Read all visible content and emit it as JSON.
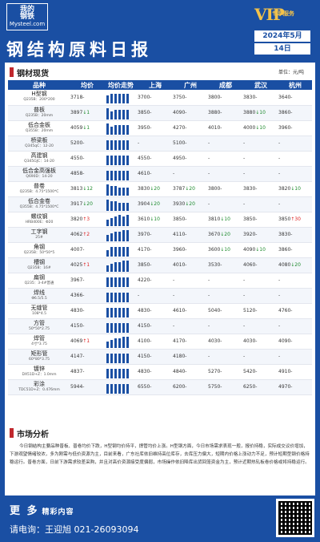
{
  "header": {
    "logo_line1": "我的",
    "logo_line2": "钢铁",
    "logo_line3": "Mysteel.com",
    "vip": "VIP",
    "vip_sub": "专享服务",
    "title": "钢结构原料日报",
    "month": "2024年5月",
    "day": "14日"
  },
  "section1": {
    "title": "钢材现货",
    "unit": "单位：元/吨"
  },
  "columns": [
    "品种",
    "均价",
    "均价走势",
    "上海",
    "广州",
    "成都",
    "武汉",
    "杭州"
  ],
  "rows": [
    {
      "name": "H型钢",
      "spec": "Q235B：200*200",
      "avg": "3718",
      "ch": "-",
      "dir": "",
      "spark": [
        10,
        12,
        12,
        12,
        12,
        12
      ],
      "sh": "3700",
      "sh_ch": "-",
      "gz": "3750",
      "gz_ch": "-",
      "cd": "3800",
      "cd_ch": "-",
      "wh": "3830",
      "wh_ch": "-",
      "hz": "3640",
      "hz_ch": "-"
    },
    {
      "name": "普板",
      "spec": "Q235B：20mm",
      "avg": "3897",
      "ch": "↓1",
      "dir": "dn",
      "spark": [
        14,
        10,
        12,
        12,
        12,
        12
      ],
      "sh": "3850",
      "sh_ch": "-",
      "gz": "4090",
      "gz_ch": "-",
      "cd": "3880",
      "cd_ch": "-",
      "wh": "3880",
      "wh_ch": "↓10",
      "hz": "3860",
      "hz_ch": "-"
    },
    {
      "name": "低合金板",
      "spec": "Q355B：20mm",
      "avg": "4059",
      "ch": "↓1",
      "dir": "dn",
      "spark": [
        14,
        10,
        12,
        12,
        12,
        12
      ],
      "sh": "3950",
      "sh_ch": "-",
      "gz": "4270",
      "gz_ch": "-",
      "cd": "4010",
      "cd_ch": "-",
      "wh": "4000",
      "wh_ch": "↓10",
      "hz": "3960",
      "hz_ch": "-"
    },
    {
      "name": "桥梁板",
      "spec": "Q345qC：12-20",
      "avg": "5200",
      "ch": "-",
      "dir": "",
      "spark": [
        12,
        12,
        12,
        12,
        12,
        12
      ],
      "sh": "-",
      "sh_ch": "",
      "gz": "5100",
      "gz_ch": "-",
      "cd": "-",
      "cd_ch": "",
      "wh": "-",
      "wh_ch": "",
      "hz": "-",
      "hz_ch": ""
    },
    {
      "name": "高建钢",
      "spec": "Q345GJC：14-20",
      "avg": "4550",
      "ch": "-",
      "dir": "",
      "spark": [
        12,
        12,
        12,
        12,
        12,
        12
      ],
      "sh": "4550",
      "sh_ch": "-",
      "gz": "4950",
      "gz_ch": "-",
      "cd": "-",
      "cd_ch": "",
      "wh": "-",
      "wh_ch": "",
      "hz": "-",
      "hz_ch": ""
    },
    {
      "name": "低合金高强板",
      "spec": "Q690D：14-20",
      "avg": "4858",
      "ch": "-",
      "dir": "",
      "spark": [
        12,
        12,
        12,
        12,
        12,
        12
      ],
      "sh": "4610",
      "sh_ch": "-",
      "gz": "-",
      "gz_ch": "",
      "cd": "-",
      "cd_ch": "",
      "wh": "-",
      "wh_ch": "",
      "hz": "-",
      "hz_ch": ""
    },
    {
      "name": "普卷",
      "spec": "Q235B：4.75*1500*C",
      "avg": "3813",
      "ch": "↓12",
      "dir": "dn",
      "spark": [
        14,
        12,
        12,
        10,
        10,
        10
      ],
      "sh": "3830",
      "sh_ch": "↓20",
      "gz": "3787",
      "gz_ch": "↓20",
      "cd": "3800",
      "cd_ch": "-",
      "wh": "3830",
      "wh_ch": "-",
      "hz": "3820",
      "hz_ch": "↓10"
    },
    {
      "name": "低合金卷",
      "spec": "Q355B：4.75*1500*C",
      "avg": "3917",
      "ch": "↓20",
      "dir": "dn",
      "spark": [
        14,
        12,
        12,
        10,
        10,
        10
      ],
      "sh": "3904",
      "sh_ch": "↓20",
      "gz": "3930",
      "gz_ch": "↓20",
      "cd": "-",
      "cd_ch": "",
      "wh": "-",
      "wh_ch": "",
      "hz": "-",
      "hz_ch": ""
    },
    {
      "name": "螺纹钢",
      "spec": "HRB400E：Φ20",
      "avg": "3820",
      "ch": "↑3",
      "dir": "up",
      "spark": [
        8,
        10,
        12,
        14,
        12,
        14
      ],
      "sh": "3610",
      "sh_ch": "↓10",
      "gz": "3850",
      "gz_ch": "-",
      "cd": "3810",
      "cd_ch": "↓10",
      "wh": "3850",
      "wh_ch": "-",
      "hz": "3850",
      "hz_ch": "↑30"
    },
    {
      "name": "工字钢",
      "spec": "25#",
      "avg": "4062",
      "ch": "↑2",
      "dir": "up",
      "spark": [
        8,
        10,
        12,
        12,
        14,
        14
      ],
      "sh": "3970",
      "sh_ch": "-",
      "gz": "4110",
      "gz_ch": "-",
      "cd": "3670",
      "cd_ch": "↓20",
      "wh": "3920",
      "wh_ch": "-",
      "hz": "3830",
      "hz_ch": "-"
    },
    {
      "name": "角钢",
      "spec": "Q235B：50*50*5",
      "avg": "4007",
      "ch": "-",
      "dir": "",
      "spark": [
        8,
        12,
        12,
        12,
        12,
        12
      ],
      "sh": "4170",
      "sh_ch": "-",
      "gz": "3960",
      "gz_ch": "-",
      "cd": "3600",
      "cd_ch": "↓10",
      "wh": "4090",
      "wh_ch": "↓10",
      "hz": "3860",
      "hz_ch": "-"
    },
    {
      "name": "槽钢",
      "spec": "Q235B：16#",
      "avg": "4025",
      "ch": "↑1",
      "dir": "up",
      "spark": [
        8,
        10,
        12,
        12,
        14,
        14
      ],
      "sh": "3850",
      "sh_ch": "-",
      "gz": "4010",
      "gz_ch": "-",
      "cd": "3530",
      "cd_ch": "-",
      "wh": "4060",
      "wh_ch": "-",
      "hz": "4080",
      "hz_ch": "↓20"
    },
    {
      "name": "扁钢",
      "spec": "Q235：3-4#普通",
      "avg": "3967",
      "ch": "-",
      "dir": "",
      "spark": [
        12,
        12,
        12,
        12,
        12,
        12
      ],
      "sh": "4220",
      "sh_ch": "-",
      "gz": "-",
      "gz_ch": "",
      "cd": "-",
      "cd_ch": "",
      "wh": "-",
      "wh_ch": "",
      "hz": "-",
      "hz_ch": ""
    },
    {
      "name": "焊线",
      "spec": "Φ6.5/5.5",
      "avg": "4366",
      "ch": "-",
      "dir": "",
      "spark": [
        12,
        12,
        12,
        12,
        12,
        12
      ],
      "sh": "-",
      "sh_ch": "",
      "gz": "-",
      "gz_ch": "",
      "cd": "-",
      "cd_ch": "",
      "wh": "-",
      "wh_ch": "",
      "hz": "-",
      "hz_ch": ""
    },
    {
      "name": "无缝管",
      "spec": "108*4.5",
      "avg": "4830",
      "ch": "-",
      "dir": "",
      "spark": [
        12,
        12,
        12,
        12,
        12,
        12
      ],
      "sh": "4830",
      "sh_ch": "-",
      "gz": "4610",
      "gz_ch": "-",
      "cd": "5040",
      "cd_ch": "-",
      "wh": "5120",
      "wh_ch": "-",
      "hz": "4760",
      "hz_ch": "-"
    },
    {
      "name": "方管",
      "spec": "50*50*2.75",
      "avg": "4150",
      "ch": "-",
      "dir": "",
      "spark": [
        12,
        12,
        12,
        12,
        12,
        12
      ],
      "sh": "4150",
      "sh_ch": "-",
      "gz": "-",
      "gz_ch": "",
      "cd": "-",
      "cd_ch": "",
      "wh": "-",
      "wh_ch": "",
      "hz": "-",
      "hz_ch": ""
    },
    {
      "name": "焊管",
      "spec": "4寸*3.75",
      "avg": "4069",
      "ch": "↑1",
      "dir": "up",
      "spark": [
        8,
        10,
        12,
        12,
        14,
        14
      ],
      "sh": "4100",
      "sh_ch": "-",
      "gz": "4170",
      "gz_ch": "-",
      "cd": "4030",
      "cd_ch": "-",
      "wh": "4030",
      "wh_ch": "-",
      "hz": "4090",
      "hz_ch": "-"
    },
    {
      "name": "矩形管",
      "spec": "60*80*3.75",
      "avg": "4147",
      "ch": "-",
      "dir": "",
      "spark": [
        12,
        12,
        12,
        12,
        12,
        12
      ],
      "sh": "4150",
      "sh_ch": "-",
      "gz": "4180",
      "gz_ch": "-",
      "cd": "-",
      "cd_ch": "",
      "wh": "-",
      "wh_ch": "",
      "hz": "-",
      "hz_ch": ""
    },
    {
      "name": "镀锌",
      "spec": "DX51D+Z：1.0mm",
      "avg": "4837",
      "ch": "-",
      "dir": "",
      "spark": [
        12,
        12,
        12,
        12,
        12,
        12
      ],
      "sh": "4830",
      "sh_ch": "-",
      "gz": "4840",
      "gz_ch": "-",
      "cd": "5270",
      "cd_ch": "-",
      "wh": "5420",
      "wh_ch": "-",
      "hz": "4910",
      "hz_ch": "-"
    },
    {
      "name": "彩涂",
      "spec": "TDC51D+Z：0.476mm",
      "avg": "5944",
      "ch": "-",
      "dir": "",
      "spark": [
        12,
        12,
        12,
        12,
        12,
        12
      ],
      "sh": "6550",
      "sh_ch": "-",
      "gz": "6200",
      "gz_ch": "-",
      "cd": "5750",
      "cd_ch": "-",
      "wh": "6250",
      "wh_ch": "-",
      "hz": "4970",
      "hz_ch": "-"
    }
  ],
  "section2": {
    "title": "市场分析"
  },
  "analysis": "今日钢结构主要品种普板、普卷均价下跌，H型钢均价持平，焊管均价上涨。H型钢方面，今日市场需求表现一般，报价持稳，实际成交议价增加，下游观望情绪较浓，多为刚需与低价资源为主，目前来看，广东社库依旧维持高位库存，去库压力偏大，短期内价格上涨动力不足，预计短期型钢价格持稳运行。普卷方面，日前下游需求较差采购，并且对高价资源接受度偏弱，市场操作依旧降库出货回笼资金为主，预计近期热轧板卷价格或将持稳运行。",
  "footer": {
    "more": "更 多",
    "more_sub": "精彩内容",
    "contact": "请电询：王迎旭  021-26093094"
  }
}
